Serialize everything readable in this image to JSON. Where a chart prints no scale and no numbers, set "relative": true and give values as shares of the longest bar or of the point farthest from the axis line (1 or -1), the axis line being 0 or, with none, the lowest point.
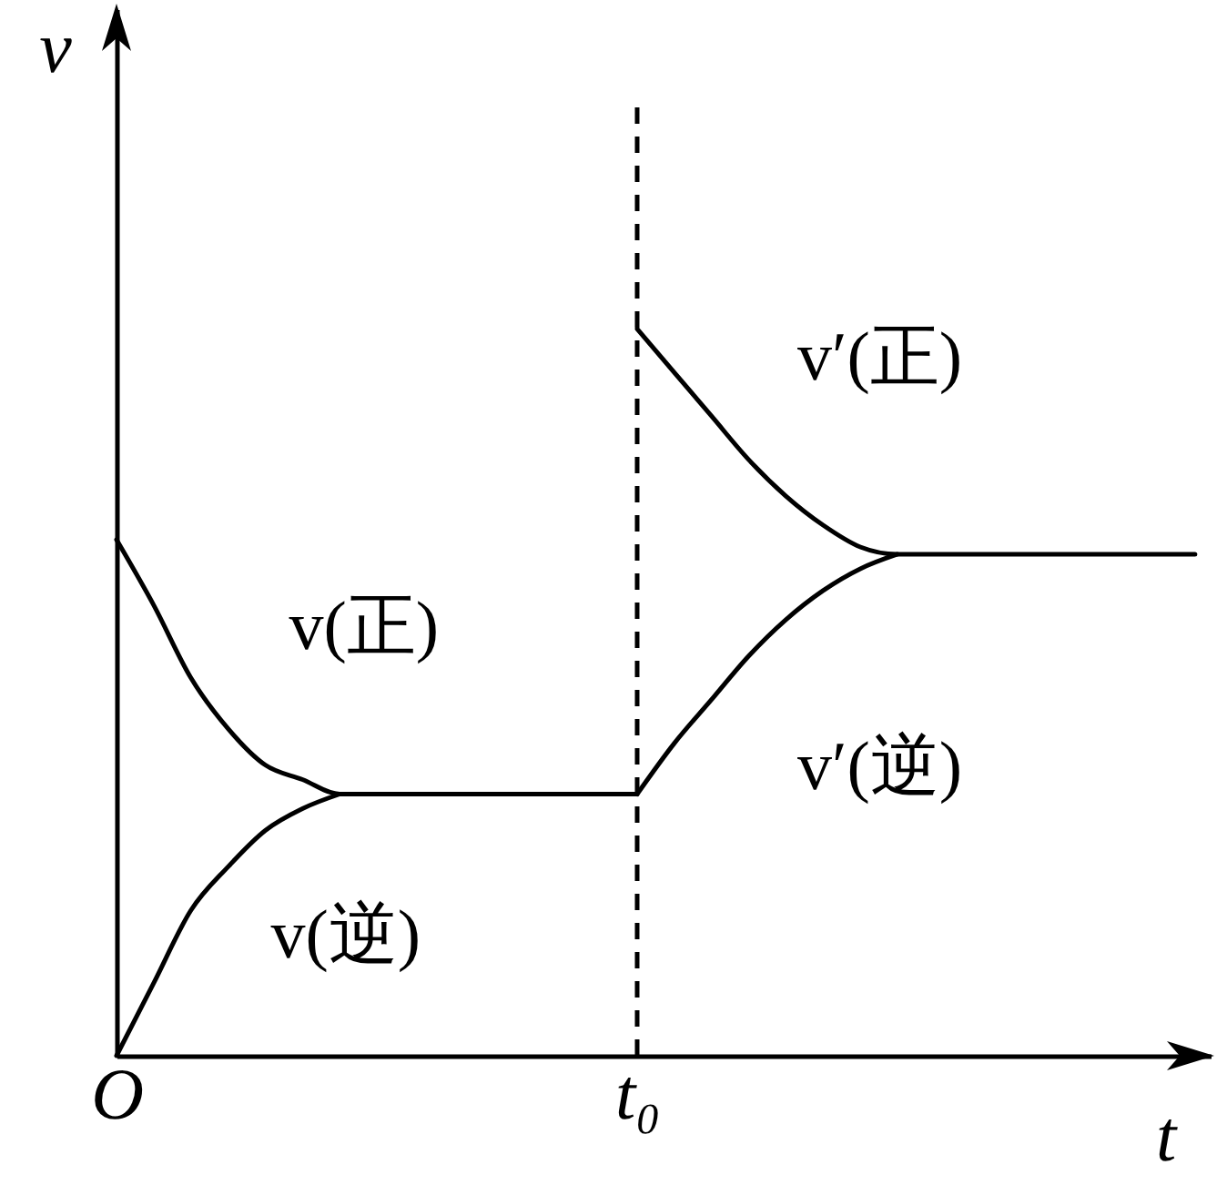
{
  "chart_data": {
    "type": "line",
    "relative": true,
    "xlabel": "t",
    "ylabel": "v",
    "categories": [
      "O",
      null,
      null,
      null,
      null,
      null,
      null,
      null,
      null,
      null,
      null,
      null,
      null,
      null,
      "t₀",
      null,
      null,
      null,
      null,
      null,
      null,
      null,
      null,
      null,
      null,
      null,
      null,
      null,
      null,
      null
    ],
    "ref_lines": [
      {
        "axis": "x",
        "value": "t₀",
        "line_style": "dashed",
        "color": "#000000"
      }
    ],
    "series": [
      {
        "name": "v(正)",
        "color": "#000000",
        "values": [
          0.71,
          0.62,
          0.52,
          0.45,
          0.4,
          0.38,
          0.36,
          0.36,
          0.36,
          0.36,
          0.36,
          0.36,
          0.36,
          0.36,
          0.36,
          null,
          null,
          null,
          null,
          null,
          null,
          null,
          null,
          null,
          null,
          null,
          null,
          null,
          null,
          null
        ]
      },
      {
        "name": "v(逆)",
        "color": "#000000",
        "values": [
          0,
          0.1,
          0.2,
          0.26,
          0.31,
          0.34,
          0.36,
          null,
          null,
          null,
          null,
          null,
          null,
          null,
          null,
          null,
          null,
          null,
          null,
          null,
          null,
          null,
          null,
          null,
          null,
          null,
          null,
          null,
          null,
          null
        ]
      },
      {
        "name": "v′(正)",
        "color": "#000000",
        "values": [
          null,
          null,
          null,
          null,
          null,
          null,
          null,
          null,
          null,
          null,
          null,
          null,
          null,
          null,
          1,
          0.94,
          0.88,
          0.82,
          0.77,
          0.73,
          0.7,
          0.69,
          0.69,
          0.69,
          0.69,
          0.69,
          0.69,
          0.69,
          0.69,
          0.69
        ]
      },
      {
        "name": "v′(逆)",
        "color": "#000000",
        "values": [
          null,
          null,
          null,
          null,
          null,
          null,
          null,
          null,
          null,
          null,
          null,
          null,
          null,
          null,
          0.36,
          0.43,
          0.49,
          0.55,
          0.6,
          0.64,
          0.67,
          0.69,
          null,
          null,
          null,
          null,
          null,
          null,
          null,
          null
        ]
      }
    ]
  }
}
